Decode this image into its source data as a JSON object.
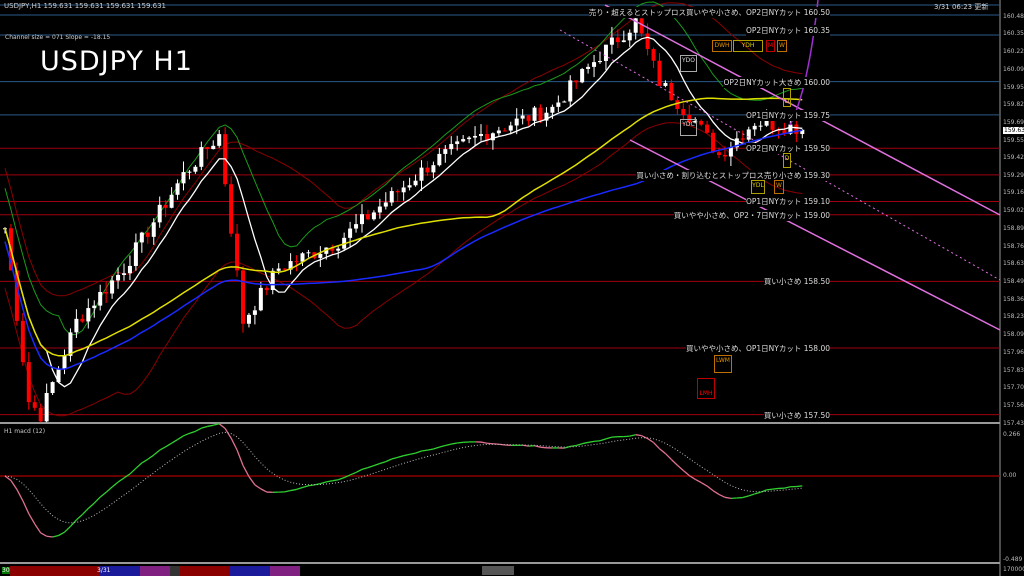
{
  "header": {
    "symbol_line": "USDJPY,H1  159.631 159.631 159.631 159.631",
    "updated": "3/31 06:23 更新",
    "channel_info": "Channel size = 071 Slope = -18.15",
    "big_title": "USDJPY H1"
  },
  "price_axis": {
    "ticks": [
      "160.485",
      "160.355",
      "160.220",
      "160.090",
      "159.955",
      "159.825",
      "159.690",
      "159.555",
      "159.425",
      "159.290",
      "159.160",
      "159.025",
      "158.895",
      "158.760",
      "158.630",
      "158.495",
      "158.360",
      "158.230",
      "158.095",
      "157.965",
      "157.830",
      "157.700",
      "157.565",
      "157.430"
    ],
    "current": "159.631"
  },
  "levels": [
    {
      "price": 160.35,
      "label": "OP2日NYカット 160.35",
      "color": "#2a5a8a"
    },
    {
      "price": 160.5,
      "label": "売り・超えるとストップロス買いやや小さめ、OP2日NYカット 160.50",
      "color": "#2a5a8a"
    },
    {
      "price": 160.0,
      "label": "OP2日NYカット大きめ 160.00",
      "color": "#2a5a8a"
    },
    {
      "price": 159.75,
      "label": "OP1日NYカット 159.75",
      "color": "#2a5a8a"
    },
    {
      "price": 159.5,
      "label": "OP2日NYカット 159.50",
      "color": "#a00010"
    },
    {
      "price": 159.3,
      "label": "買い小さめ・割り込むとストップロス売り小さめ 159.30",
      "color": "#a00010"
    },
    {
      "price": 159.1,
      "label": "OP1日NYカット 159.10",
      "color": "#a00010"
    },
    {
      "price": 159.0,
      "label": "買いやや小さめ、OP2・7日NYカット 159.00",
      "color": "#a00010"
    },
    {
      "price": 158.5,
      "label": "買い小さめ 158.50",
      "color": "#a00010"
    },
    {
      "price": 158.0,
      "label": "買いやや小さめ、OP1日NYカット 158.00",
      "color": "#a00010"
    },
    {
      "price": 157.5,
      "label": "買い小さめ 157.50",
      "color": "#a00010"
    }
  ],
  "markers": {
    "ydh": "YDH",
    "dwh": "DWH",
    "m": "M",
    "w": "W",
    "ydo": "YDO",
    "ydc": "YDC",
    "d1": "D",
    "d2": "D",
    "ydl": "YDL",
    "wl": "W",
    "lwm": "LWM",
    "lmh": "LMH"
  },
  "price_path": [
    [
      0,
      158.9
    ],
    [
      4,
      157.6
    ],
    [
      6,
      157.5
    ],
    [
      12,
      158.2
    ],
    [
      20,
      158.6
    ],
    [
      30,
      159.3
    ],
    [
      36,
      159.6
    ],
    [
      38,
      158.9
    ],
    [
      40,
      158.2
    ],
    [
      46,
      158.6
    ],
    [
      56,
      158.8
    ],
    [
      64,
      159.1
    ],
    [
      72,
      159.4
    ],
    [
      80,
      159.6
    ],
    [
      92,
      159.8
    ],
    [
      100,
      160.2
    ],
    [
      106,
      160.45
    ],
    [
      110,
      160.0
    ],
    [
      116,
      159.7
    ],
    [
      120,
      159.45
    ],
    [
      126,
      159.7
    ],
    [
      134,
      159.65
    ]
  ],
  "colors": {
    "bull": "#ffffff",
    "bear": "#ff0000",
    "ma_fast": "#ffffff",
    "ma_slow": "#e0e000",
    "ma_blue": "#1a2aff",
    "band": "#8a0000",
    "channel": "#e070e0",
    "macd_up": "#30d030",
    "macd_down": "#e07090"
  },
  "macd": {
    "title": "H1  macd (12)",
    "ticks": [
      "0.266",
      "0.00",
      "-0.489"
    ]
  },
  "footer": {
    "date": "3/31",
    "day": "30",
    "volume_tick": "170000"
  }
}
